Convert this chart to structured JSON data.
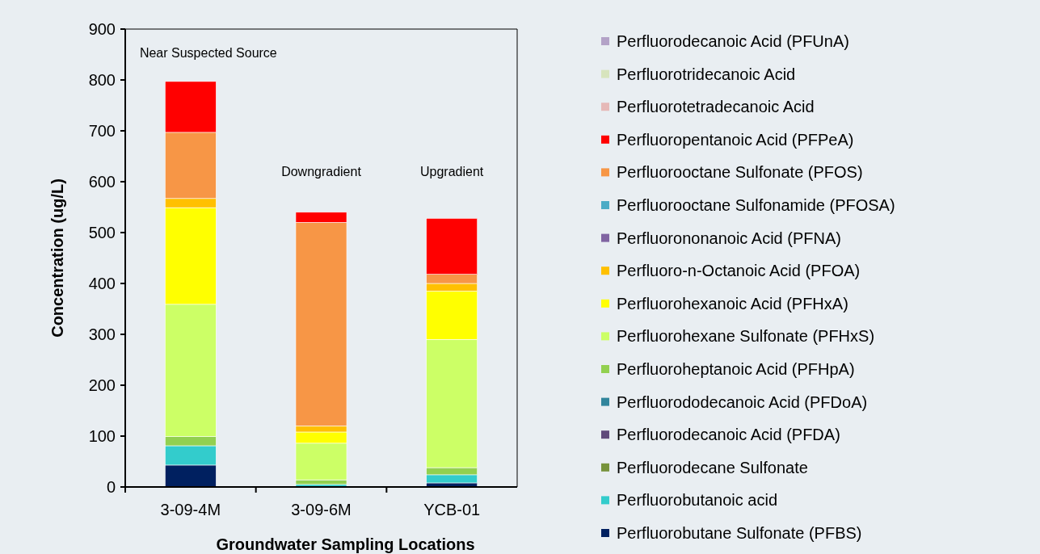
{
  "chart_data": {
    "type": "bar",
    "stacked": true,
    "xlabel": "Groundwater Sampling Locations",
    "ylabel": "Concentration (ug/L)",
    "categories": [
      "3-09-4M",
      "3-09-6M",
      "YCB-01"
    ],
    "ylim": [
      0,
      900
    ],
    "yticks": [
      0,
      100,
      200,
      300,
      400,
      500,
      600,
      700,
      800,
      900
    ],
    "grid": false,
    "legend": "right",
    "annotations": [
      "Near Suspected Source",
      "Downgradient",
      "Upgradient"
    ],
    "series": [
      {
        "name": "Perfluorobutane Sulfonate (PFBS)",
        "color": "#002060",
        "values": [
          43,
          0,
          8
        ]
      },
      {
        "name": "Perfluorobutanoic acid",
        "color": "#33cccc",
        "values": [
          38,
          5,
          16
        ]
      },
      {
        "name": "Perfluorodecane Sulfonate",
        "color": "#77933c",
        "values": [
          0,
          0,
          0
        ]
      },
      {
        "name": "Perfluorodecanoic Acid (PFDA)",
        "color": "#604a7b",
        "values": [
          0,
          0,
          0
        ]
      },
      {
        "name": "Perfluorododecanoic Acid (PFDoA)",
        "color": "#31859c",
        "values": [
          0,
          0,
          0
        ]
      },
      {
        "name": "Perfluoroheptanoic Acid (PFHpA)",
        "color": "#92d050",
        "values": [
          18,
          9,
          14
        ]
      },
      {
        "name": "Perfluorohexane Sulfonate (PFHxS)",
        "color": "#ccff66",
        "values": [
          260,
          72,
          252
        ]
      },
      {
        "name": "Perfluorohexanoic Acid (PFHxA)",
        "color": "#ffff00",
        "values": [
          190,
          22,
          95
        ]
      },
      {
        "name": "Perfluoro-n-Octanoic Acid (PFOA)",
        "color": "#ffc000",
        "values": [
          18,
          12,
          15
        ]
      },
      {
        "name": "Perfluorononanoic Acid (PFNA)",
        "color": "#8064a2",
        "values": [
          0,
          0,
          0
        ]
      },
      {
        "name": "Perfluorooctane Sulfonamide (PFOSA)",
        "color": "#4bacc6",
        "values": [
          0,
          0,
          0
        ]
      },
      {
        "name": "Perfluorooctane Sulfonate (PFOS)",
        "color": "#f79646",
        "values": [
          130,
          400,
          18
        ]
      },
      {
        "name": "Perfluoropentanoic Acid (PFPeA)",
        "color": "#ff0000",
        "values": [
          100,
          20,
          110
        ]
      },
      {
        "name": "Perfluorotetradecanoic Acid",
        "color": "#e6b9b8",
        "values": [
          0,
          0,
          0
        ]
      },
      {
        "name": "Perfluorotridecanoic Acid",
        "color": "#d7e4bd",
        "values": [
          0,
          0,
          0
        ]
      },
      {
        "name": "Perfluorodecanoic Acid (PFUnA)",
        "color": "#b3a2c7",
        "values": [
          0,
          0,
          0
        ]
      }
    ]
  }
}
